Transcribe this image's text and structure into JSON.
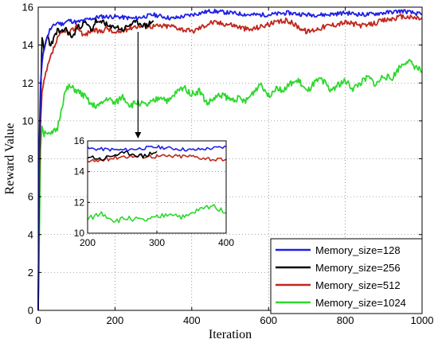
{
  "chart_data": {
    "type": "line",
    "xlabel": "Iteration",
    "ylabel": "Reward Value",
    "xlim": [
      0,
      1000
    ],
    "ylim": [
      0,
      16
    ],
    "xticks": [
      "0",
      "200",
      "400",
      "600",
      "800",
      "1000"
    ],
    "yticks": [
      "0",
      "2",
      "4",
      "6",
      "8",
      "10",
      "12",
      "14",
      "16"
    ],
    "grid": "dotted",
    "legend_position": "bottom-right",
    "series": [
      {
        "name": "Memory_size=128",
        "color": "#1f1fe6",
        "x": [
          0,
          3,
          6,
          10,
          15,
          20,
          30,
          40,
          50,
          60,
          80,
          100,
          120,
          140,
          160,
          180,
          200,
          250,
          300,
          350,
          400,
          450,
          500,
          550,
          600,
          650,
          700,
          750,
          800,
          850,
          900,
          950,
          1000
        ],
        "y": [
          0,
          9.0,
          12.0,
          13.0,
          13.8,
          14.2,
          14.8,
          15.0,
          15.2,
          15.1,
          15.3,
          15.2,
          15.3,
          15.4,
          15.5,
          15.5,
          15.5,
          15.4,
          15.6,
          15.4,
          15.6,
          15.8,
          15.7,
          15.6,
          15.6,
          15.7,
          15.6,
          15.6,
          15.7,
          15.6,
          15.7,
          15.8,
          15.6
        ]
      },
      {
        "name": "Memory_size=256",
        "color": "#000000",
        "x": [
          0,
          3,
          6,
          10,
          15,
          20,
          25,
          30,
          40,
          50,
          60,
          70,
          80,
          90,
          100,
          110,
          120,
          130,
          140,
          150,
          160,
          170,
          180,
          190,
          200,
          220,
          240,
          260,
          280,
          300
        ],
        "y": [
          0,
          8.0,
          11.0,
          14.5,
          13.6,
          14.2,
          14.5,
          14.0,
          14.3,
          14.8,
          14.6,
          14.9,
          14.6,
          14.4,
          14.9,
          15.0,
          15.2,
          15.0,
          14.8,
          15.3,
          15.1,
          15.3,
          15.0,
          14.9,
          15.0,
          14.8,
          15.1,
          15.2,
          15.0,
          15.3
        ]
      },
      {
        "name": "Memory_size=512",
        "color": "#c0281e",
        "x": [
          0,
          3,
          6,
          10,
          15,
          20,
          30,
          40,
          50,
          60,
          70,
          80,
          100,
          120,
          140,
          160,
          180,
          200,
          250,
          300,
          350,
          400,
          450,
          500,
          550,
          600,
          650,
          700,
          750,
          800,
          850,
          900,
          950,
          1000
        ],
        "y": [
          0,
          7.0,
          10.0,
          11.5,
          12.0,
          12.5,
          13.2,
          13.8,
          14.3,
          14.6,
          14.8,
          14.6,
          15.0,
          14.5,
          14.8,
          14.7,
          14.9,
          14.6,
          15.0,
          15.0,
          15.0,
          14.7,
          15.2,
          15.1,
          14.8,
          15.1,
          15.3,
          14.7,
          15.0,
          15.2,
          15.0,
          15.3,
          15.5,
          15.4
        ]
      },
      {
        "name": "Memory_size=1024",
        "color": "#2ed82e",
        "x": [
          0,
          3,
          6,
          10,
          15,
          20,
          30,
          40,
          50,
          60,
          70,
          80,
          100,
          120,
          140,
          160,
          180,
          200,
          220,
          240,
          260,
          280,
          300,
          320,
          340,
          360,
          380,
          400,
          420,
          440,
          460,
          480,
          500,
          520,
          540,
          560,
          580,
          600,
          620,
          640,
          660,
          680,
          700,
          720,
          740,
          760,
          780,
          800,
          820,
          840,
          860,
          880,
          900,
          920,
          940,
          960,
          980,
          1000
        ],
        "y": [
          0,
          4.0,
          8.5,
          9.8,
          9.3,
          9.5,
          9.2,
          9.4,
          9.6,
          10.6,
          11.5,
          11.8,
          11.6,
          11.3,
          10.8,
          10.8,
          11.2,
          10.9,
          11.3,
          10.8,
          11.0,
          10.8,
          11.0,
          11.3,
          11.0,
          11.5,
          11.8,
          11.4,
          11.6,
          10.9,
          11.2,
          11.4,
          11.1,
          11.2,
          11.0,
          11.5,
          12.0,
          11.3,
          11.8,
          11.6,
          12.0,
          12.1,
          11.5,
          12.0,
          12.2,
          11.6,
          11.9,
          12.1,
          11.7,
          12.0,
          12.3,
          11.9,
          12.4,
          12.2,
          12.8,
          13.2,
          12.9,
          12.6
        ]
      }
    ],
    "inset": {
      "xlim": [
        200,
        400
      ],
      "ylim": [
        10,
        16
      ],
      "xticks": [
        "200",
        "300",
        "400"
      ],
      "yticks": [
        "10",
        "12",
        "14",
        "16"
      ]
    }
  }
}
